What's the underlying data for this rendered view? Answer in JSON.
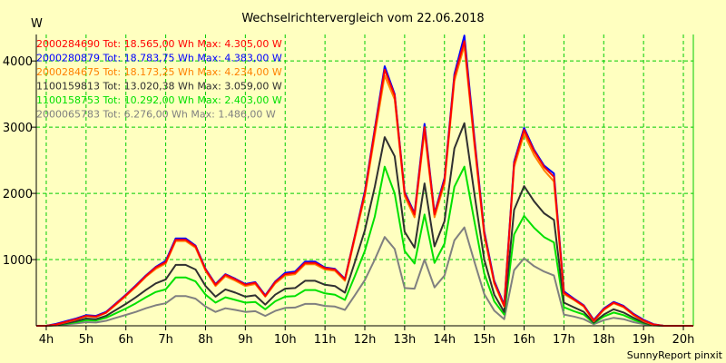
{
  "chart_data": {
    "type": "line",
    "title": "Wechselrichtervergleich vom 22.06.2018",
    "ylabel": "W",
    "credit": "SunnyReport pinxit",
    "xlim": [
      3.75,
      20.25
    ],
    "ylim": [
      0,
      4400
    ],
    "grid": true,
    "legend_placement": "top-left",
    "x_ticks": [
      {
        "value": 4,
        "label": "4h"
      },
      {
        "value": 5,
        "label": "5h"
      },
      {
        "value": 6,
        "label": "6h"
      },
      {
        "value": 7,
        "label": "7h"
      },
      {
        "value": 8,
        "label": "8h"
      },
      {
        "value": 9,
        "label": "9h"
      },
      {
        "value": 10,
        "label": "10h"
      },
      {
        "value": 11,
        "label": "11h"
      },
      {
        "value": 12,
        "label": "12h"
      },
      {
        "value": 13,
        "label": "13h"
      },
      {
        "value": 14,
        "label": "14h"
      },
      {
        "value": 15,
        "label": "15h"
      },
      {
        "value": 16,
        "label": "16h"
      },
      {
        "value": 17,
        "label": "17h"
      },
      {
        "value": 18,
        "label": "18h"
      },
      {
        "value": 19,
        "label": "19h"
      },
      {
        "value": 20,
        "label": "20h"
      }
    ],
    "y_ticks": [
      {
        "value": 1000,
        "label": "1000"
      },
      {
        "value": 2000,
        "label": "2000"
      },
      {
        "value": 3000,
        "label": "3000"
      },
      {
        "value": 4000,
        "label": "4000"
      }
    ],
    "x": [
      3.75,
      4.0,
      4.25,
      4.5,
      4.75,
      5.0,
      5.25,
      5.5,
      5.75,
      6.0,
      6.25,
      6.5,
      6.75,
      7.0,
      7.25,
      7.5,
      7.75,
      8.0,
      8.25,
      8.5,
      8.75,
      9.0,
      9.25,
      9.5,
      9.75,
      10.0,
      10.25,
      10.5,
      10.75,
      11.0,
      11.25,
      11.5,
      11.75,
      12.0,
      12.25,
      12.5,
      12.75,
      13.0,
      13.25,
      13.5,
      13.75,
      14.0,
      14.25,
      14.5,
      14.75,
      15.0,
      15.25,
      15.5,
      15.75,
      16.0,
      16.25,
      16.5,
      16.75,
      17.0,
      17.25,
      17.5,
      17.75,
      18.0,
      18.25,
      18.5,
      18.75,
      19.0,
      19.25,
      19.5,
      19.75,
      20.0,
      20.25
    ],
    "series": [
      {
        "name": "2000284690",
        "legend": "2000284690 Tot: 18.565,00 Wh Max: 4.305,00 W",
        "color": "#ff0000",
        "values": [
          0,
          0,
          20,
          60,
          100,
          150,
          140,
          200,
          330,
          460,
          600,
          750,
          880,
          960,
          1300,
          1300,
          1200,
          850,
          620,
          770,
          700,
          620,
          650,
          450,
          660,
          780,
          800,
          950,
          950,
          870,
          850,
          700,
          1350,
          2000,
          2950,
          3870,
          3480,
          2000,
          1680,
          3000,
          1680,
          2200,
          3760,
          4300,
          2800,
          1400,
          660,
          300,
          2450,
          2960,
          2640,
          2400,
          2250,
          500,
          400,
          300,
          80,
          250,
          350,
          290,
          170,
          80,
          20,
          0,
          0,
          0,
          0
        ]
      },
      {
        "name": "2000280879",
        "legend": "2000280879 Tot: 18.783,75 Wh Max: 4.383,00 W",
        "color": "#0000ff",
        "values": [
          0,
          0,
          30,
          70,
          110,
          160,
          150,
          210,
          340,
          470,
          610,
          760,
          890,
          980,
          1320,
          1320,
          1210,
          860,
          630,
          780,
          710,
          630,
          660,
          460,
          670,
          800,
          820,
          970,
          970,
          880,
          860,
          710,
          1360,
          2030,
          2980,
          3920,
          3500,
          2020,
          1700,
          3050,
          1700,
          2230,
          3800,
          4383,
          2850,
          1430,
          680,
          320,
          2480,
          2990,
          2660,
          2420,
          2300,
          520,
          410,
          310,
          90,
          260,
          360,
          300,
          180,
          90,
          25,
          0,
          0,
          0,
          0
        ]
      },
      {
        "name": "2000284675",
        "legend": "2000284675 Tot: 18.173,25 Wh Max: 4.234,00 W",
        "color": "#ff8000",
        "values": [
          0,
          0,
          18,
          55,
          95,
          145,
          135,
          195,
          320,
          450,
          590,
          740,
          860,
          940,
          1280,
          1280,
          1180,
          830,
          600,
          750,
          680,
          600,
          630,
          440,
          640,
          760,
          780,
          930,
          930,
          850,
          830,
          680,
          1320,
          1960,
          2880,
          3780,
          3420,
          1960,
          1640,
          2940,
          1640,
          2150,
          3700,
          4234,
          2740,
          1370,
          640,
          290,
          2400,
          2900,
          2580,
          2350,
          2180,
          480,
          390,
          290,
          70,
          240,
          340,
          280,
          160,
          70,
          15,
          0,
          0,
          0,
          0
        ]
      },
      {
        "name": "1100159813",
        "legend": "1100159813 Tot: 13.020,38 Wh Max: 3.059,00 W",
        "color": "#303030",
        "values": [
          0,
          0,
          10,
          40,
          70,
          110,
          100,
          150,
          240,
          330,
          430,
          540,
          640,
          700,
          920,
          920,
          850,
          600,
          440,
          550,
          500,
          440,
          460,
          320,
          470,
          560,
          570,
          680,
          680,
          620,
          600,
          500,
          960,
          1440,
          2100,
          2850,
          2560,
          1420,
          1180,
          2150,
          1200,
          1580,
          2680,
          3059,
          2000,
          1000,
          470,
          210,
          1750,
          2110,
          1880,
          1700,
          1600,
          350,
          280,
          210,
          50,
          170,
          250,
          200,
          120,
          50,
          10,
          0,
          0,
          0,
          0
        ]
      },
      {
        "name": "1100158753",
        "legend": "1100158753 Tot: 10.292,00 Wh Max: 2.403,00 W",
        "color": "#00e000",
        "values": [
          0,
          0,
          8,
          30,
          55,
          85,
          80,
          120,
          190,
          260,
          340,
          430,
          510,
          550,
          730,
          730,
          670,
          470,
          350,
          430,
          390,
          350,
          360,
          250,
          370,
          440,
          450,
          540,
          540,
          490,
          470,
          390,
          750,
          1130,
          1650,
          2403,
          2000,
          1130,
          940,
          1680,
          950,
          1240,
          2100,
          2403,
          1580,
          790,
          370,
          170,
          1380,
          1660,
          1480,
          1340,
          1260,
          280,
          220,
          170,
          40,
          140,
          200,
          160,
          90,
          40,
          8,
          0,
          0,
          0,
          0
        ]
      },
      {
        "name": "2000065783",
        "legend": "2000065783 Tot: 6.276,00 Wh Max: 1.486,00 W",
        "color": "#808080",
        "values": [
          0,
          0,
          5,
          20,
          35,
          55,
          50,
          75,
          120,
          165,
          210,
          265,
          310,
          340,
          450,
          450,
          410,
          290,
          210,
          265,
          240,
          210,
          220,
          150,
          225,
          270,
          275,
          330,
          330,
          300,
          290,
          240,
          460,
          690,
          1000,
          1340,
          1160,
          570,
          560,
          1000,
          580,
          760,
          1290,
          1486,
          970,
          480,
          230,
          100,
          840,
          1020,
          900,
          820,
          760,
          170,
          140,
          100,
          25,
          85,
          120,
          100,
          55,
          25,
          5,
          0,
          0,
          0,
          0
        ]
      }
    ]
  }
}
